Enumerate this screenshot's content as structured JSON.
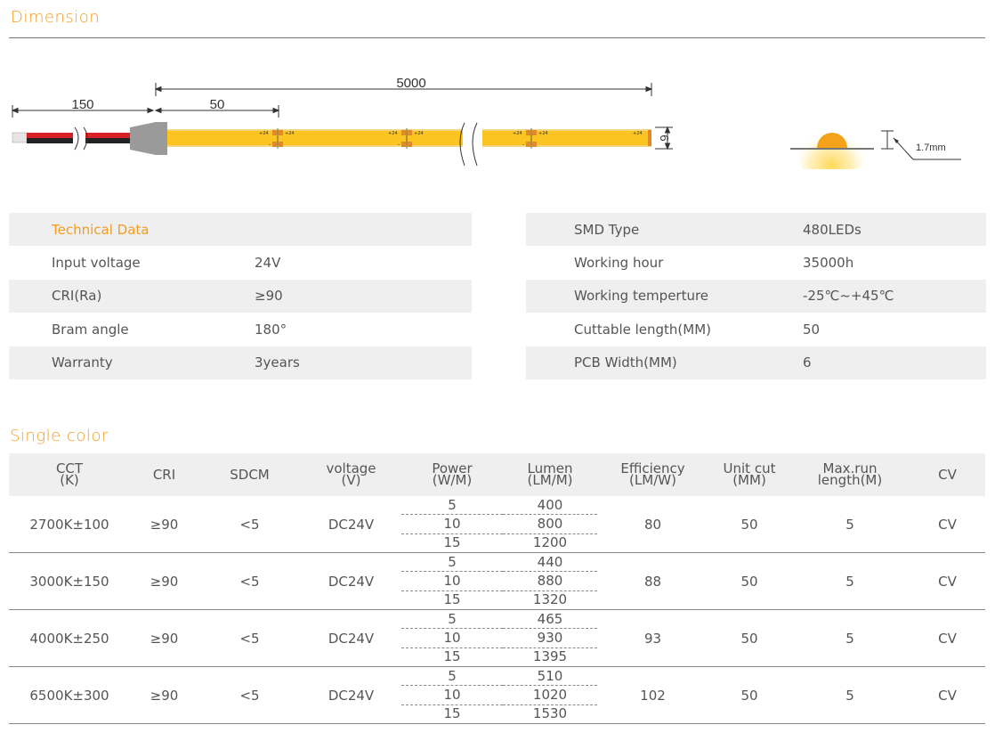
{
  "dimension": {
    "title": "Dimension",
    "dims": {
      "overall": "5000",
      "wire": "150",
      "cut": "50",
      "width": "6",
      "height": "1.7mm"
    },
    "pad_label": "+24",
    "pad_minus": "-",
    "colors": {
      "accent": "#f39c1f",
      "strip": "#fbc421",
      "red_wire": "#d92027",
      "black_wire": "#222222",
      "pad": "#e08a2c",
      "connector": "#9a9a9a"
    }
  },
  "tech_left": {
    "heading": "Technical Data",
    "rows": [
      {
        "label": "Input voltage",
        "value": "24V"
      },
      {
        "label": "CRI(Ra)",
        "value": "≥90"
      },
      {
        "label": "Bram angle",
        "value": "180°"
      },
      {
        "label": "Warranty",
        "value": "3years"
      }
    ]
  },
  "tech_right": {
    "rows": [
      {
        "label": "SMD Type",
        "value": "480LEDs"
      },
      {
        "label": "Working hour",
        "value": "35000h"
      },
      {
        "label": "Working temperture",
        "value": "-25℃~+45℃"
      },
      {
        "label": "Cuttable length(MM)",
        "value": "50"
      },
      {
        "label": "PCB Width(MM)",
        "value": "6"
      }
    ]
  },
  "single_color": {
    "title": "Single color",
    "headers": [
      {
        "line1": "CCT",
        "line2": "(K)"
      },
      {
        "line1": "CRI",
        "line2": ""
      },
      {
        "line1": "SDCM",
        "line2": ""
      },
      {
        "line1": "voltage",
        "line2": "(V)"
      },
      {
        "line1": "Power",
        "line2": "(W/M)"
      },
      {
        "line1": "Lumen",
        "line2": "(LM/M)"
      },
      {
        "line1": "Efficiency",
        "line2": "(LM/W)"
      },
      {
        "line1": "Unit cut",
        "line2": "(MM)"
      },
      {
        "line1": "Max.run",
        "line2": "length(M)"
      },
      {
        "line1": "CV",
        "line2": ""
      }
    ],
    "rows": [
      {
        "cct": "2700K±100",
        "cri": "≥90",
        "sdcm": "<5",
        "voltage": "DC24V",
        "power": [
          "5",
          "10",
          "15"
        ],
        "lumen": [
          "400",
          "800",
          "1200"
        ],
        "efficiency": "80",
        "unit_cut": "50",
        "max_run": "5",
        "cv": "CV"
      },
      {
        "cct": "3000K±150",
        "cri": "≥90",
        "sdcm": "<5",
        "voltage": "DC24V",
        "power": [
          "5",
          "10",
          "15"
        ],
        "lumen": [
          "440",
          "880",
          "1320"
        ],
        "efficiency": "88",
        "unit_cut": "50",
        "max_run": "5",
        "cv": "CV"
      },
      {
        "cct": "4000K±250",
        "cri": "≥90",
        "sdcm": "<5",
        "voltage": "DC24V",
        "power": [
          "5",
          "10",
          "15"
        ],
        "lumen": [
          "465",
          "930",
          "1395"
        ],
        "efficiency": "93",
        "unit_cut": "50",
        "max_run": "5",
        "cv": "CV"
      },
      {
        "cct": "6500K±300",
        "cri": "≥90",
        "sdcm": "<5",
        "voltage": "DC24V",
        "power": [
          "5",
          "10",
          "15"
        ],
        "lumen": [
          "510",
          "1020",
          "1530"
        ],
        "efficiency": "102",
        "unit_cut": "50",
        "max_run": "5",
        "cv": "CV"
      }
    ]
  }
}
